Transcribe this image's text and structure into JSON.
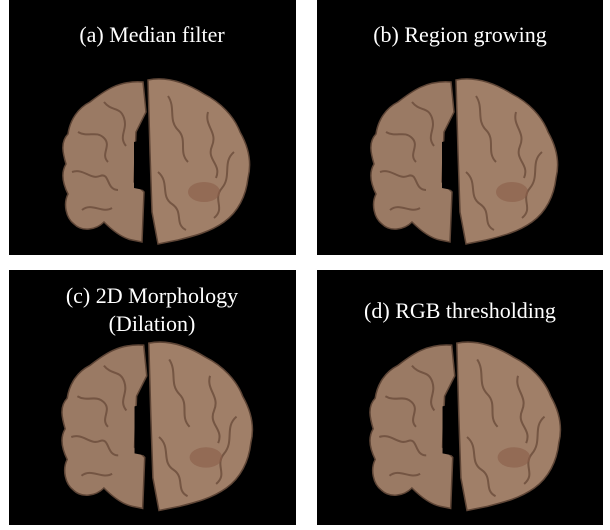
{
  "panels": [
    {
      "label_lines": [
        "(a) Median filter"
      ]
    },
    {
      "label_lines": [
        "(b) Region growing"
      ]
    },
    {
      "label_lines": [
        "(c) 2D Morphology",
        "(Dilation)"
      ]
    },
    {
      "label_lines": [
        "(d) RGB thresholding"
      ]
    }
  ]
}
